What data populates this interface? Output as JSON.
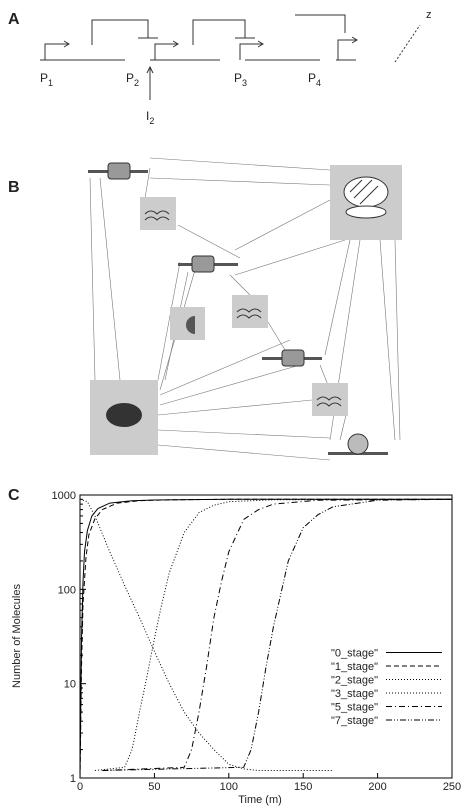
{
  "panels": [
    "A",
    "B",
    "C"
  ],
  "diagram_a": {
    "promoters": [
      {
        "letter": "P",
        "sub": "1"
      },
      {
        "letter": "P",
        "sub": "2"
      },
      {
        "letter": "P",
        "sub": "3"
      },
      {
        "letter": "P",
        "sub": "4"
      }
    ],
    "inducer": {
      "letter": "I",
      "sub": "2"
    },
    "output": "z"
  },
  "chart_data": {
    "type": "line",
    "xlabel": "Time (m)",
    "ylabel": "Number of Molecules",
    "xlim": [
      0,
      250
    ],
    "xticks": [
      0,
      50,
      100,
      150,
      200,
      250
    ],
    "ylim": [
      1,
      1000
    ],
    "yticks": [
      1,
      10,
      100,
      1000
    ],
    "yscale": "log",
    "legend": "lower-right",
    "series": [
      {
        "name": "\"0_stage\"",
        "color": "#000000",
        "linestyle": "solid",
        "x": [
          0,
          1,
          2,
          3,
          5,
          8,
          12,
          20,
          35,
          50,
          100,
          250
        ],
        "values": [
          1,
          30,
          120,
          250,
          420,
          600,
          720,
          820,
          870,
          885,
          900,
          900
        ]
      },
      {
        "name": "\"1_stage\"",
        "color": "#000000",
        "linestyle": "dashed",
        "x": [
          0,
          1,
          2,
          4,
          6,
          10,
          15,
          25,
          40,
          60,
          100,
          250
        ],
        "values": [
          1,
          15,
          70,
          220,
          380,
          560,
          700,
          820,
          870,
          890,
          900,
          900
        ]
      },
      {
        "name": "\"2_stage\"",
        "color": "#000000",
        "linestyle": "dotted",
        "x": [
          0,
          5,
          10,
          20,
          30,
          40,
          50,
          60,
          70,
          80,
          90,
          100,
          110,
          120,
          170
        ],
        "values": [
          900,
          850,
          600,
          250,
          110,
          50,
          22,
          10,
          5,
          3,
          2,
          1.4,
          1.25,
          1.2,
          1.2
        ]
      },
      {
        "name": "\"3_stage\"",
        "color": "#000000",
        "linestyle": "dotted",
        "x": [
          10,
          30,
          35,
          40,
          45,
          50,
          55,
          60,
          70,
          80,
          90,
          100,
          130,
          250
        ],
        "values": [
          1.2,
          1.3,
          2,
          5,
          12,
          30,
          70,
          150,
          400,
          650,
          780,
          850,
          890,
          900
        ]
      },
      {
        "name": "\"5_stage\"",
        "color": "#000000",
        "linestyle": "dashdot",
        "x": [
          15,
          70,
          75,
          80,
          85,
          90,
          95,
          100,
          110,
          120,
          130,
          160,
          250
        ],
        "values": [
          1.2,
          1.3,
          2,
          5,
          15,
          50,
          120,
          250,
          550,
          700,
          800,
          880,
          900
        ]
      },
      {
        "name": "\"7_stage\"",
        "color": "#000000",
        "linestyle": "dashdotdot",
        "x": [
          15,
          110,
          115,
          120,
          125,
          130,
          135,
          140,
          150,
          160,
          170,
          200,
          250
        ],
        "values": [
          1.2,
          1.3,
          2,
          5,
          15,
          40,
          90,
          200,
          450,
          620,
          750,
          880,
          900
        ]
      }
    ]
  }
}
